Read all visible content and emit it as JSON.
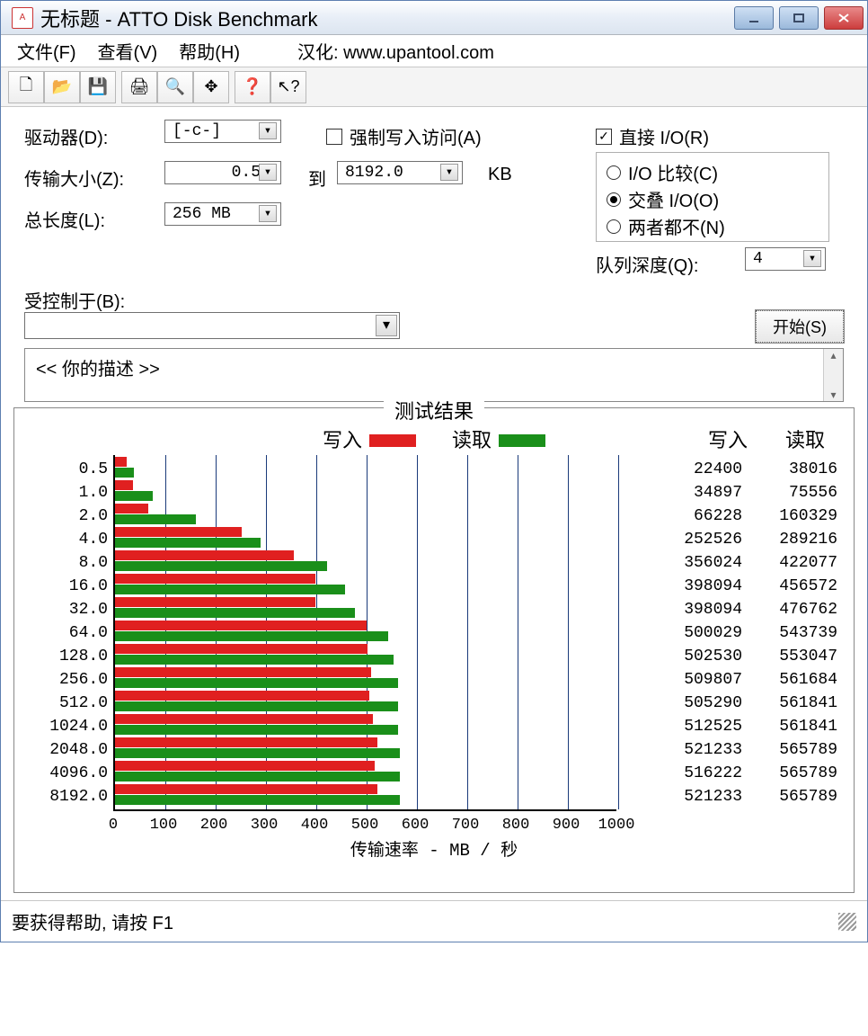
{
  "window": {
    "title": "无标题 - ATTO Disk Benchmark"
  },
  "menu": {
    "file": "文件(F)",
    "view": "查看(V)",
    "help": "帮助(H)",
    "locale": "汉化: www.upantool.com"
  },
  "form": {
    "drive_label": "驱动器(D):",
    "drive_value": "[-c-]",
    "xfer_label": "传输大小(Z):",
    "xfer_from": "0.5",
    "xfer_to_label": "到",
    "xfer_to": "8192.0",
    "xfer_unit": "KB",
    "length_label": "总长度(L):",
    "length_value": "256 MB",
    "force_write": "强制写入访问(A)",
    "force_write_checked": false,
    "direct_io": "直接 I/O(R)",
    "direct_io_checked": true,
    "io_compare": "I/O 比较(C)",
    "overlap_io": "交叠 I/O(O)",
    "neither": "两者都不(N)",
    "io_mode_selected": "overlap",
    "queue_label": "队列深度(Q):",
    "queue_value": "4",
    "ctrl_label": "受控制于(B):",
    "start_btn": "开始(S)",
    "desc": "<<  你的描述   >>"
  },
  "results": {
    "title": "测试结果",
    "legend_write": "写入",
    "legend_read": "读取",
    "hdr_write": "写入",
    "hdr_read": "读取",
    "write_color": "#e02020",
    "read_color": "#1a8f1a",
    "gridline_color": "#1a3a7a",
    "xlabel": "传输速率 - MB / 秒",
    "xmax_mb": 1000,
    "xtick_step": 100,
    "xticks": [
      "0",
      "100",
      "200",
      "300",
      "400",
      "500",
      "600",
      "700",
      "800",
      "900",
      "1000"
    ],
    "rows": [
      {
        "size": "0.5",
        "write": 22400,
        "read": 38016
      },
      {
        "size": "1.0",
        "write": 34897,
        "read": 75556
      },
      {
        "size": "2.0",
        "write": 66228,
        "read": 160329
      },
      {
        "size": "4.0",
        "write": 252526,
        "read": 289216
      },
      {
        "size": "8.0",
        "write": 356024,
        "read": 422077
      },
      {
        "size": "16.0",
        "write": 398094,
        "read": 456572
      },
      {
        "size": "32.0",
        "write": 398094,
        "read": 476762
      },
      {
        "size": "64.0",
        "write": 500029,
        "read": 543739
      },
      {
        "size": "128.0",
        "write": 502530,
        "read": 553047
      },
      {
        "size": "256.0",
        "write": 509807,
        "read": 561684
      },
      {
        "size": "512.0",
        "write": 505290,
        "read": 561841
      },
      {
        "size": "1024.0",
        "write": 512525,
        "read": 561841
      },
      {
        "size": "2048.0",
        "write": 521233,
        "read": 565789
      },
      {
        "size": "4096.0",
        "write": 516222,
        "read": 565789
      },
      {
        "size": "8192.0",
        "write": 521233,
        "read": 565789
      }
    ]
  },
  "status": "要获得帮助, 请按 F1"
}
